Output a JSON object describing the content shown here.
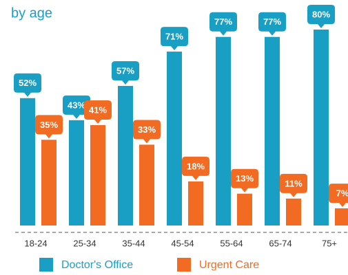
{
  "chart_data": {
    "type": "bar",
    "subtitle": "by age",
    "categories": [
      "18-24",
      "25-34",
      "35-44",
      "45-54",
      "55-64",
      "65-74",
      "75+"
    ],
    "series": [
      {
        "name": "Doctor's Office",
        "color": "#1a9fc4",
        "values": [
          52,
          43,
          57,
          71,
          77,
          77,
          80
        ],
        "value_labels": [
          "52%",
          "43%",
          "57%",
          "71%",
          "77%",
          "77%",
          "80%"
        ]
      },
      {
        "name": "Urgent Care",
        "color": "#f26b22",
        "values": [
          35,
          41,
          33,
          18,
          13,
          11,
          7
        ],
        "value_labels": [
          "35%",
          "41%",
          "33%",
          "18%",
          "13%",
          "11%",
          "7%"
        ]
      }
    ]
  }
}
